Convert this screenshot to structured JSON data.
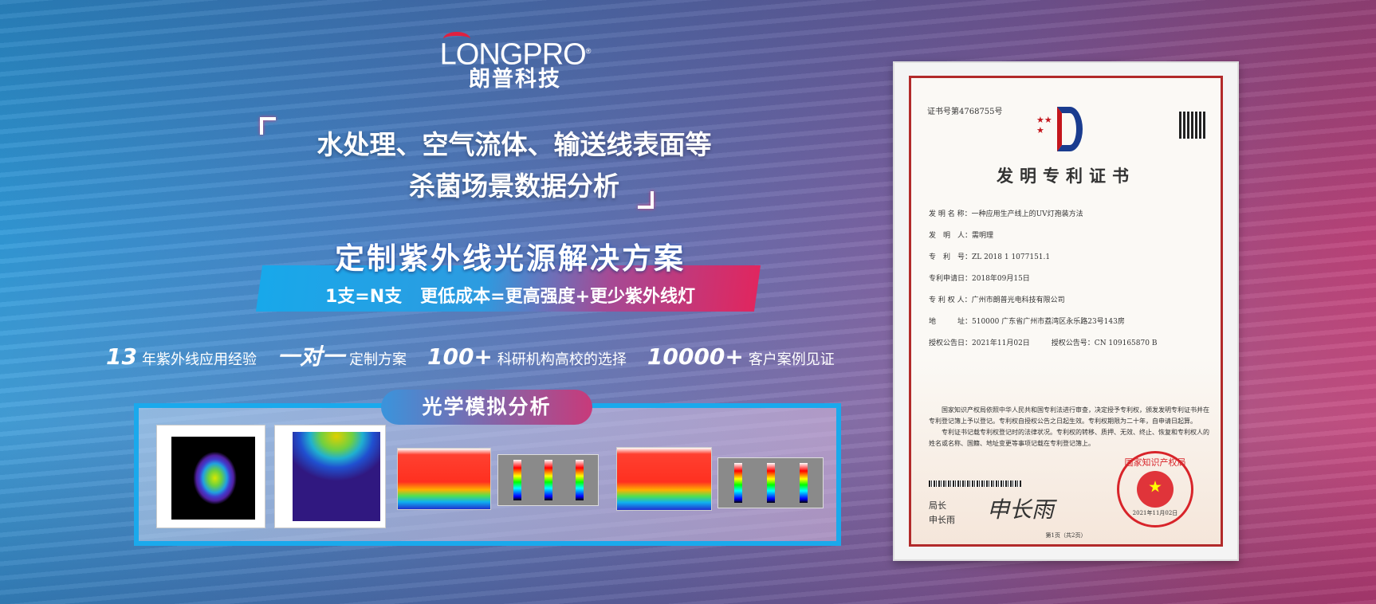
{
  "logo": {
    "en": "LONGPRO",
    "cn": "朗普科技",
    "mark": "®"
  },
  "headline": {
    "line1": "水处理、空气流体、输送线表面等",
    "line2": "杀菌场景数据分析"
  },
  "banner": {
    "title": "定制紫外线光源解决方案",
    "subtitle": "1支=N支   更低成本=更高强度+更少紫外线灯"
  },
  "stats": [
    {
      "num": "13",
      "text": "年紫外线应用经验"
    },
    {
      "num": "一对一",
      "text": "定制方案"
    },
    {
      "num": "100+",
      "text": "科研机构高校的选择"
    },
    {
      "num": "10000+",
      "text": "客户案例见证"
    }
  ],
  "panel": {
    "title": "光学模拟分析"
  },
  "certificate": {
    "number": "证书号第4768755号",
    "title": "发明专利证书",
    "fields": [
      "发 明 名 称：一种应用生产线上的UV灯孢装方法",
      "发　明　人：需明理",
      "专　利　号：ZL 2018 1 1077151.1",
      "专利申请日：2018年09月15日",
      "专 利 权 人：广州市朗普光电科技有限公司",
      "地　　　址：510000 广东省广州市荔湾区永乐路23号143房",
      "授权公告日：2021年11月02日　　　授权公告号：CN 109165870 B"
    ],
    "paragraph1": "国家知识产权局依照中华人民共和国专利法进行审查，决定授予专利权，颁发发明专利证书并在专利登记簿上予以登记。专利权自授权公告之日起生效。专利权期限为二十年，自申请日起算。",
    "paragraph2": "专利证书记载专利权登记时的法律状况。专利权的转移、质押、无效、终止、恢复和专利权人的姓名或名称、国籍、地址变更等事项记载在专利登记簿上。",
    "signer_title": "局长",
    "signer_name": "申长雨",
    "signature": "申长雨",
    "seal_text": "国家知识产权局",
    "seal_date": "2021年11月02日",
    "page": "第1页（共2页）"
  },
  "colors": {
    "accent_blue": "#1aa9ec",
    "accent_pink": "#e0265f",
    "seal_red": "#d8242a"
  }
}
